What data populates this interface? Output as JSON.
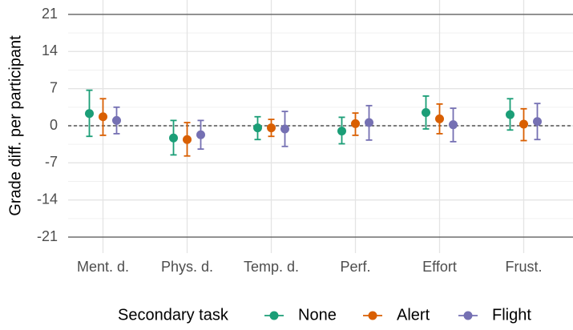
{
  "chart_data": {
    "type": "errorpoint",
    "ylabel": "Grade diff. per participant",
    "legend_title": "Secondary task",
    "legend_position": "bottom",
    "categories": [
      "Ment. d.",
      "Phys. d.",
      "Temp. d.",
      "Perf.",
      "Effort",
      "Frust."
    ],
    "ylim": [
      -21,
      21
    ],
    "yticks": [
      -21,
      -14,
      -7,
      0,
      7,
      14,
      21
    ],
    "y_minor_ticks": [
      -17.5,
      -10.5,
      -3.5,
      3.5,
      10.5,
      17.5
    ],
    "reference_line": 0,
    "grid": true,
    "series": [
      {
        "name": "None",
        "color": "#1b9e77",
        "values": [
          2.3,
          -2.3,
          -0.4,
          -1.0,
          2.5,
          2.1
        ],
        "lower": [
          -2.0,
          -5.5,
          -2.6,
          -3.4,
          -0.6,
          -0.8
        ],
        "upper": [
          6.7,
          1.0,
          1.7,
          1.6,
          5.6,
          5.1
        ]
      },
      {
        "name": "Alert",
        "color": "#d95f02",
        "values": [
          1.7,
          -2.6,
          -0.4,
          0.4,
          1.3,
          0.3
        ],
        "lower": [
          -1.8,
          -5.7,
          -2.0,
          -1.8,
          -1.5,
          -2.8
        ],
        "upper": [
          5.1,
          0.6,
          1.2,
          2.4,
          4.1,
          3.2
        ]
      },
      {
        "name": "Flight",
        "color": "#7570b3",
        "values": [
          1.0,
          -1.7,
          -0.6,
          0.6,
          0.2,
          0.8
        ],
        "lower": [
          -1.5,
          -4.4,
          -3.9,
          -2.7,
          -3.0,
          -2.6
        ],
        "upper": [
          3.5,
          1.0,
          2.7,
          3.8,
          3.3,
          4.2
        ]
      }
    ]
  }
}
